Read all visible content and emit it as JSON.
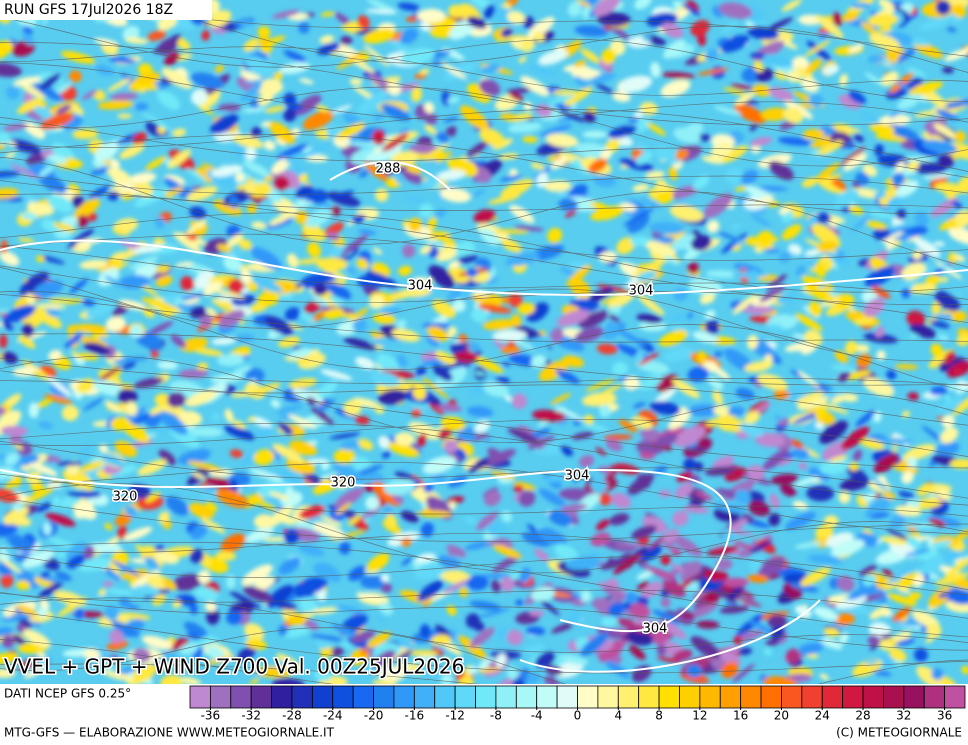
{
  "header": "RUN GFS 17Jul2026 18Z",
  "title": "VVEL + GPT + WIND Z700 Val. 00Z25JUL2026",
  "source": "DATI NCEP GFS 0.25°",
  "footer_left": "MTG-GFS — ELABORAZIONE WWW.METEOGIORNALE.IT",
  "footer_right": "(C) METEOGIORNALE",
  "contour_labels": [
    "288",
    "304",
    "304",
    "304",
    "320",
    "320",
    "304"
  ],
  "colorbar": {
    "range": [
      -38,
      38
    ],
    "ticks": [
      -36,
      -32,
      -28,
      -24,
      -20,
      -16,
      -12,
      -8,
      -4,
      0,
      4,
      8,
      12,
      16,
      20,
      24,
      28,
      32,
      36
    ],
    "colors": [
      "#c088d0",
      "#a070c0",
      "#8050b0",
      "#603098",
      "#3020a0",
      "#2030b8",
      "#1040d0",
      "#1050e0",
      "#1868f0",
      "#2080f0",
      "#3098f8",
      "#40b0f8",
      "#50c8f8",
      "#60d8f8",
      "#70e8f8",
      "#90f0f8",
      "#a8f8f8",
      "#c0fcf8",
      "#e0fcf8",
      "#fffcc8",
      "#fff8a0",
      "#fff070",
      "#ffe840",
      "#ffe000",
      "#ffd000",
      "#ffb800",
      "#ffa000",
      "#ff8800",
      "#ff7000",
      "#f85820",
      "#f04030",
      "#e02838",
      "#d01840",
      "#c01048",
      "#a81050",
      "#981060",
      "#b03080",
      "#c050a0"
    ]
  }
}
